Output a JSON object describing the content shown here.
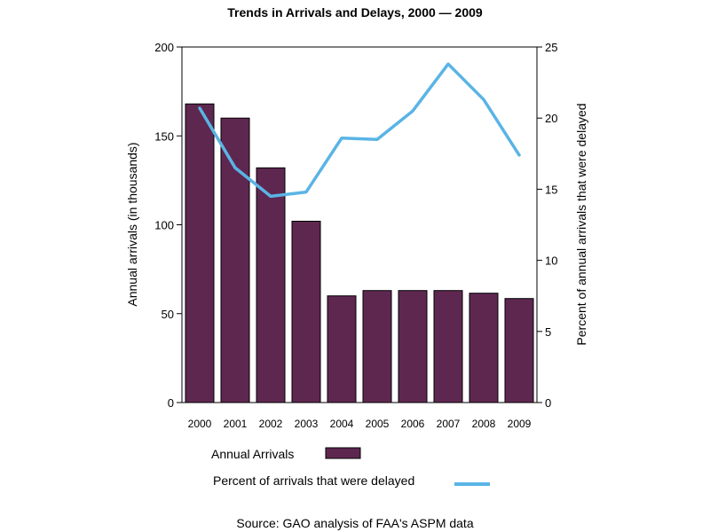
{
  "chart_data": {
    "type": "bar",
    "title": "Trends in Arrivals and Delays, 2000 — 2009",
    "categories": [
      "2000",
      "2001",
      "2002",
      "2003",
      "2004",
      "2005",
      "2006",
      "2007",
      "2008",
      "2009"
    ],
    "ylabel_left": "Annual arrivals (in thousands)",
    "ylabel_right": "Percent of annual arrivals that were delayed",
    "ylim_left": [
      0,
      200
    ],
    "yticks_left": [
      0,
      50,
      100,
      150,
      200
    ],
    "ylim_right": [
      0,
      25
    ],
    "yticks_right": [
      0,
      5,
      10,
      15,
      20,
      25
    ],
    "grid": false,
    "series": [
      {
        "name": "Annual Arrivals",
        "type": "bar",
        "axis": "left",
        "color": "#5e2750",
        "values": [
          168,
          160,
          132,
          102,
          60,
          63,
          63,
          63,
          61.5,
          58.5
        ]
      },
      {
        "name": "Percent of arrivals that were delayed",
        "type": "line",
        "axis": "right",
        "color": "#5ab4e5",
        "values": [
          20.7,
          16.5,
          14.5,
          14.8,
          18.6,
          18.5,
          20.5,
          23.8,
          21.3,
          17.4
        ]
      }
    ],
    "legend_position": "bottom",
    "source": "Source: GAO analysis of FAA's ASPM data"
  }
}
